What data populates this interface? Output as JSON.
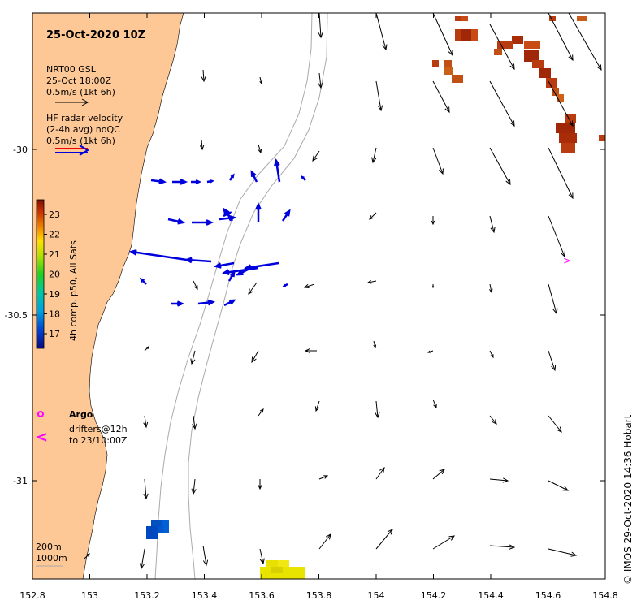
{
  "title": "25-Oct-2020 10Z",
  "side_credit": "© IMOS 29-Oct-2020 14:36 Hobart",
  "legend": {
    "model_line1": "NRT00 GSL",
    "model_line2": "25-Oct 18:00Z",
    "model_scale": "0.5m/s (1kt 6h)",
    "radar_line1": "HF radar velocity",
    "radar_line2": "(2-4h avg) noQC",
    "radar_scale": "0.5m/s (1kt 6h)",
    "argo": "Argo",
    "drifters_line1": "drifters@12h",
    "drifters_line2": "to 23/10:00Z",
    "depth_200": "200m",
    "depth_1000": "1000m"
  },
  "colorbar": {
    "label": "4h comp. p50, All Sats",
    "ticks": [
      "23",
      "22",
      "21",
      "20",
      "19",
      "18",
      "17"
    ]
  },
  "axes": {
    "x_ticks": [
      "152.8",
      "153",
      "153.2",
      "153.4",
      "153.6",
      "153.8",
      "154",
      "154.2",
      "154.4",
      "154.6",
      "154.8"
    ],
    "y_ticks": [
      "-30",
      "-30.5",
      "-31"
    ]
  },
  "colors": {
    "land": "#fdc896",
    "model_arrow": "#000000",
    "radar_arrow": "#0000dd",
    "radar_legend_red": "#ee0000",
    "argo": "#ff00ff",
    "isobath": "#aaaaaa"
  }
}
